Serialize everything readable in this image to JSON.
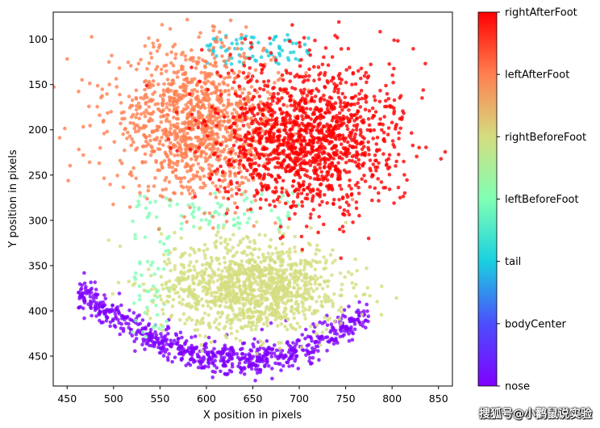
{
  "chart_data": {
    "type": "scatter",
    "title": "",
    "xlabel": "X position in pixels",
    "ylabel": "Y position in pixels",
    "xlim": [
      435,
      865
    ],
    "ylim": [
      483,
      70
    ],
    "y_inverted": true,
    "xticks": [
      450,
      500,
      550,
      600,
      650,
      700,
      750,
      800,
      850
    ],
    "yticks": [
      100,
      150,
      200,
      250,
      300,
      350,
      400,
      450
    ],
    "grid": false,
    "legend": "colorbar-right",
    "colormap": "rainbow",
    "colorbar_labels": [
      "nose",
      "bodyCenter",
      "tail",
      "leftBeforeFoot",
      "rightBeforeFoot",
      "leftAfterFoot",
      "rightAfterFoot"
    ],
    "series": [
      {
        "name": "nose",
        "color": "#8000ff",
        "shape": "arc",
        "x_range": [
          462,
          775
        ],
        "y_center_top": 400,
        "y_bottom": 462,
        "approx_points": 4000
      },
      {
        "name": "leftBeforeFoot",
        "color": "#80ffb4",
        "x_range": [
          520,
          700
        ],
        "y_range": [
          270,
          430
        ],
        "approx_points": 1500
      },
      {
        "name": "rightBeforeFoot",
        "color": "#d4dd80",
        "center": [
          650,
          375
        ],
        "radius": [
          115,
          60
        ],
        "approx_points": 6000
      },
      {
        "name": "tail",
        "color": "#1ad0e0",
        "x_range": [
          600,
          710
        ],
        "y_range": [
          95,
          130
        ],
        "approx_points": 400
      },
      {
        "name": "leftAfterFoot",
        "color": "#ff8050",
        "center": [
          590,
          190
        ],
        "radius": [
          110,
          95
        ],
        "approx_points": 6000
      },
      {
        "name": "rightAfterFoot",
        "color": "#ff0000",
        "center": [
          710,
          210
        ],
        "radius": [
          115,
          95
        ],
        "approx_points": 7000
      }
    ]
  },
  "watermark": "搜狐号@小鹳鼠说实验"
}
